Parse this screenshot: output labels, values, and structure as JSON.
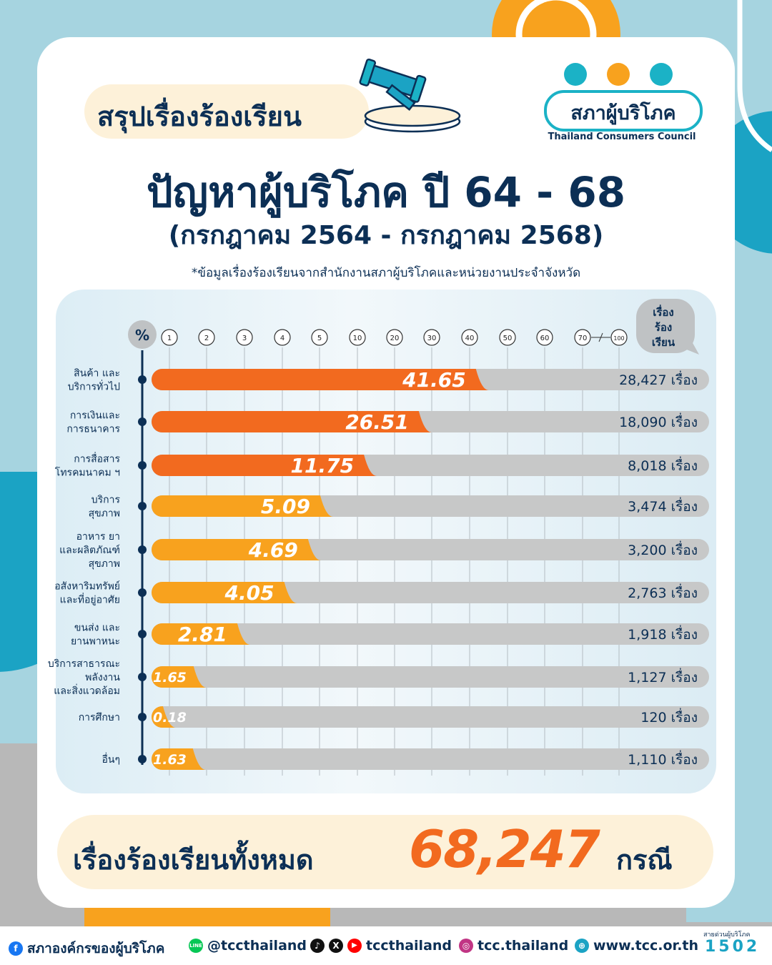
{
  "title_pill": "สรุปเรื่องร้องเรียน",
  "logo": {
    "name": "สภาผู้บริโภค",
    "subtitle": "Thailand Consumers Council"
  },
  "headline": "ปัญหาผู้บริโภค ปี 64 - 68",
  "subheadline": "(กรกฎาคม 2564 - กรกฎาคม 2568)",
  "note": "*ข้อมูลเรื่องร้องเรียนจากสำนักงานสภาผู้บริโภคและหน่วยงานประจำจังหวัด",
  "total": {
    "label": "เรื่องร้องเรียนทั้งหมด",
    "number": "68,247",
    "unit": "กรณี"
  },
  "colors": {
    "navy": "#0c2f55",
    "orange": "#f26a1f",
    "amber": "#f8a21e",
    "teal": "#1bb2c6",
    "grey_bar": "#c7c8c8",
    "sky_bg": "#a6d4e0"
  },
  "footer": {
    "facebook": "สภาองค์กรของผู้บริโภค",
    "line": "@tccthailand",
    "tiktok_x_youtube": "tccthailand",
    "instagram": "tcc.thailand",
    "website": "www.tcc.or.th",
    "hotline_label": "สายด่วนผู้บริโภค",
    "hotline": "1502",
    "icons": [
      "facebook-icon",
      "line-icon",
      "tiktok-icon",
      "x-icon",
      "youtube-icon",
      "instagram-icon",
      "globe-icon"
    ]
  },
  "chart_data": {
    "type": "bar",
    "orientation": "horizontal",
    "scale": "piecewise",
    "x_axis_symbol": "%",
    "x_ticks": [
      "1",
      "2",
      "3",
      "4",
      "5",
      "10",
      "20",
      "30",
      "40",
      "50",
      "60",
      "70",
      "100"
    ],
    "count_header": [
      "เรื่อง",
      "ร้อง",
      "เรียน"
    ],
    "count_unit": "เรื่อง",
    "categories": [
      [
        "สินค้า และ",
        "บริการทั่วไป"
      ],
      [
        "การเงินและ",
        "การธนาคาร"
      ],
      [
        "การสื่อสาร",
        "โทรคมนาคม ฯ"
      ],
      [
        "บริการ",
        "สุขภาพ"
      ],
      [
        "อาหาร ยา",
        "และผลิตภัณฑ์",
        "สุขภาพ"
      ],
      [
        "อสังหาริมทรัพย์",
        "และที่อยู่อาศัย"
      ],
      [
        "ขนส่ง และ",
        "ยานพาหนะ"
      ],
      [
        "บริการสาธารณะ",
        "พลังงาน",
        "และสิ่งแวดล้อม"
      ],
      [
        "การศึกษา"
      ],
      [
        "อื่นๆ"
      ]
    ],
    "percent_values": [
      41.65,
      26.51,
      11.75,
      5.09,
      4.69,
      4.05,
      2.81,
      1.65,
      0.18,
      1.63
    ],
    "percent_labels": [
      "41.65",
      "26.51",
      "11.75",
      "5.09",
      "4.69",
      "4.05",
      "2.81",
      "1.65",
      "0.18",
      "1.63"
    ],
    "count_labels": [
      "28,427",
      "18,090",
      "8,018",
      "3,474",
      "3,200",
      "2,763",
      "1,918",
      "1,127",
      "120",
      "1,110"
    ]
  }
}
